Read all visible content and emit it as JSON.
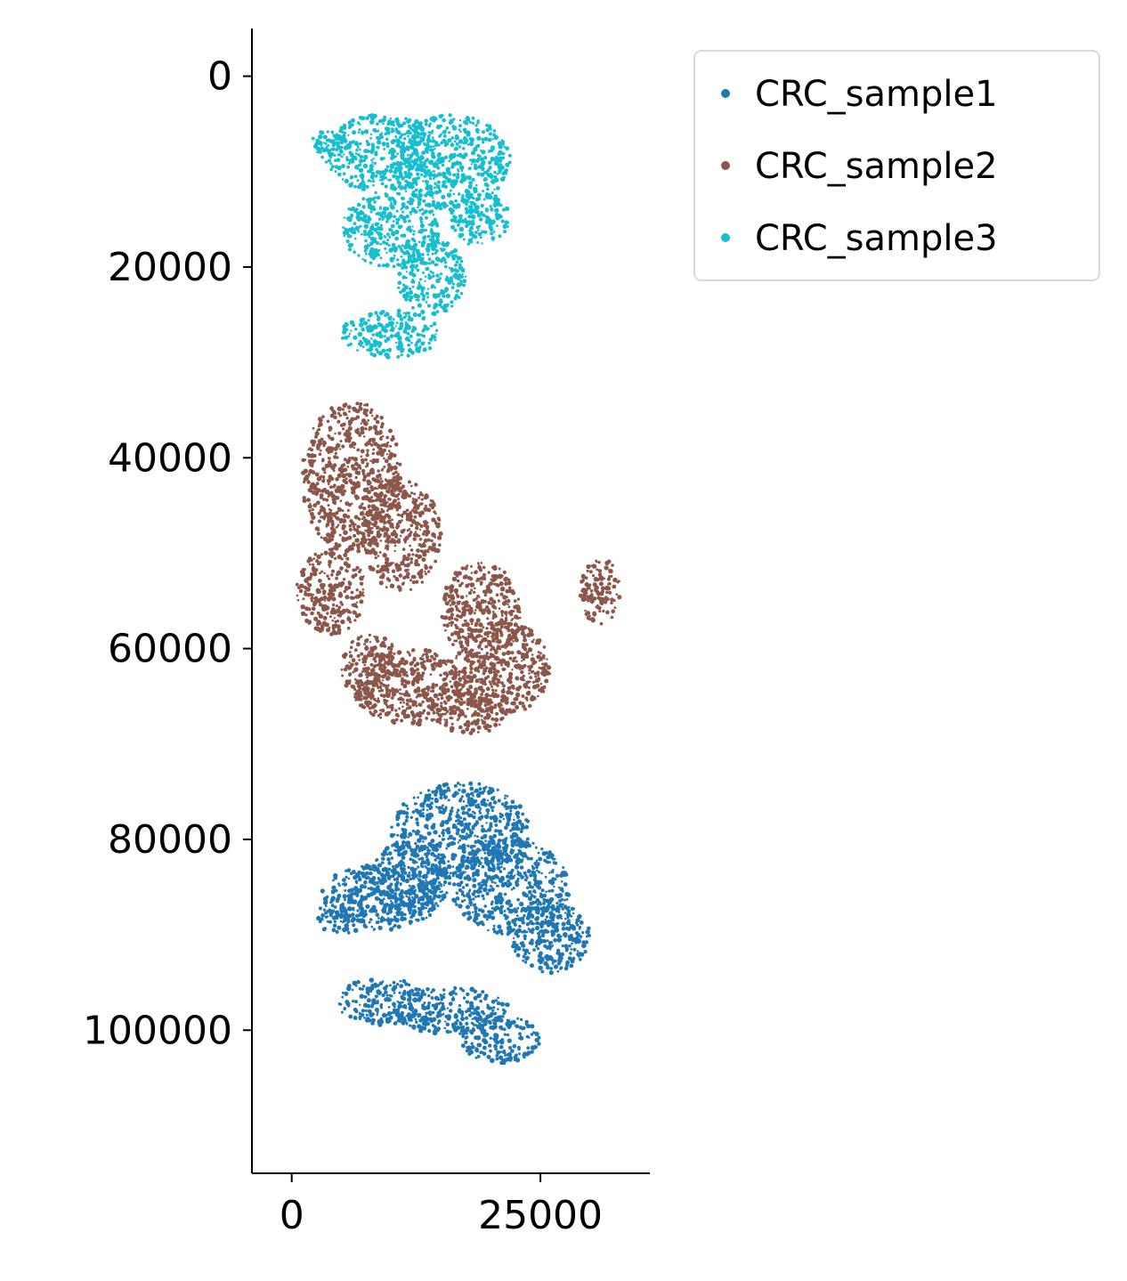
{
  "chart_data": {
    "type": "scatter",
    "title": "",
    "xlabel": "",
    "ylabel": "",
    "xlim": [
      -4000,
      36000
    ],
    "ylim": [
      115000,
      -5000
    ],
    "y_inverted": true,
    "x_ticks": [
      0,
      25000
    ],
    "x_tick_labels": [
      "0",
      "25000"
    ],
    "y_ticks": [
      0,
      20000,
      40000,
      60000,
      80000,
      100000
    ],
    "y_tick_labels": [
      "0",
      "20000",
      "40000",
      "60000",
      "80000",
      "100000"
    ],
    "grid": false,
    "legend": {
      "placement": "upper-right-outside"
    },
    "series": [
      {
        "name": "CRC_sample1",
        "color": "#1f77b4",
        "regions": [
          {
            "cx": 17000,
            "cy": 79000,
            "rx": 7000,
            "ry": 5000
          },
          {
            "cx": 22000,
            "cy": 85000,
            "rx": 6000,
            "ry": 5000
          },
          {
            "cx": 9000,
            "cy": 86000,
            "rx": 6000,
            "ry": 3500
          },
          {
            "cx": 26000,
            "cy": 90000,
            "rx": 4000,
            "ry": 4000
          },
          {
            "cx": 12000,
            "cy": 84000,
            "rx": 4000,
            "ry": 4000
          },
          {
            "cx": 9000,
            "cy": 97000,
            "rx": 4500,
            "ry": 2500
          },
          {
            "cx": 16000,
            "cy": 98000,
            "rx": 6000,
            "ry": 2500
          },
          {
            "cx": 21000,
            "cy": 101000,
            "rx": 4000,
            "ry": 2500
          },
          {
            "cx": 5000,
            "cy": 88000,
            "rx": 2500,
            "ry": 2000
          }
        ]
      },
      {
        "name": "CRC_sample2",
        "color": "#8c564b",
        "regions": [
          {
            "cx": 6000,
            "cy": 42000,
            "rx": 5000,
            "ry": 8000
          },
          {
            "cx": 4000,
            "cy": 54000,
            "rx": 3500,
            "ry": 4500
          },
          {
            "cx": 11000,
            "cy": 48000,
            "rx": 4000,
            "ry": 6000
          },
          {
            "cx": 19000,
            "cy": 56000,
            "rx": 4000,
            "ry": 5000
          },
          {
            "cx": 21000,
            "cy": 62000,
            "rx": 5000,
            "ry": 5000
          },
          {
            "cx": 12000,
            "cy": 64000,
            "rx": 6000,
            "ry": 4000
          },
          {
            "cx": 8000,
            "cy": 62000,
            "rx": 3000,
            "ry": 3500
          },
          {
            "cx": 18000,
            "cy": 66000,
            "rx": 4000,
            "ry": 3000
          },
          {
            "cx": 31000,
            "cy": 54000,
            "rx": 2000,
            "ry": 3500
          }
        ]
      },
      {
        "name": "CRC_sample3",
        "color": "#17becf",
        "regions": [
          {
            "cx": 9000,
            "cy": 8000,
            "rx": 6000,
            "ry": 4000
          },
          {
            "cx": 16000,
            "cy": 9000,
            "rx": 6000,
            "ry": 5000
          },
          {
            "cx": 10000,
            "cy": 16000,
            "rx": 5000,
            "ry": 4000
          },
          {
            "cx": 14000,
            "cy": 21000,
            "rx": 3500,
            "ry": 4000
          },
          {
            "cx": 10000,
            "cy": 27000,
            "rx": 5000,
            "ry": 2500
          },
          {
            "cx": 19000,
            "cy": 15000,
            "rx": 3000,
            "ry": 3000
          },
          {
            "cx": 4000,
            "cy": 7000,
            "rx": 2000,
            "ry": 1500
          }
        ]
      }
    ]
  }
}
